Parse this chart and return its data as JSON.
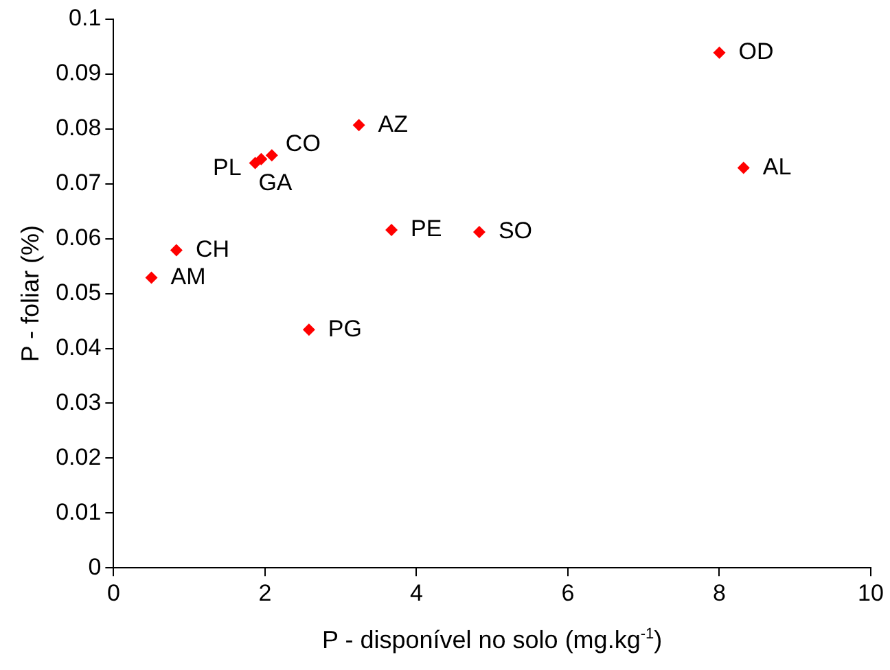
{
  "chart_data": {
    "type": "scatter",
    "xlabel": "P - disponível no solo (mg.kg$^{-1}$)",
    "ylabel": "P - foliar (%)",
    "x": [
      8.0,
      8.32,
      3.24,
      2.09,
      1.87,
      1.95,
      3.67,
      4.83,
      0.83,
      0.5,
      2.58
    ],
    "series": [
      {
        "color": "#ff0000",
        "values": [
          0.0939,
          0.0729,
          0.0807,
          0.0752,
          0.0738,
          0.0745,
          0.0616,
          0.0612,
          0.0579,
          0.0529,
          0.0434
        ]
      }
    ],
    "xlim": [
      0,
      10
    ],
    "xticks": [
      0,
      2,
      4,
      6,
      8,
      10
    ],
    "ylim": [
      0,
      0.1
    ],
    "yticks": [
      0,
      0.01,
      0.02,
      0.03,
      0.04,
      0.05,
      0.06,
      0.07,
      0.08,
      0.09,
      0.1
    ],
    "grid": false,
    "legend": false,
    "marker": "diamond",
    "annotations": [
      {
        "text": "OD",
        "x": 8.0,
        "y": 0.0939
      },
      {
        "text": "AL",
        "x": 8.32,
        "y": 0.0729
      },
      {
        "text": "AZ",
        "x": 3.24,
        "y": 0.0807
      },
      {
        "text": "CO",
        "x": 2.09,
        "y": 0.0752
      },
      {
        "text": "PL",
        "x": 1.87,
        "y": 0.0738
      },
      {
        "text": "GA",
        "x": 1.95,
        "y": 0.0745
      },
      {
        "text": "PE",
        "x": 3.67,
        "y": 0.0616
      },
      {
        "text": "SO",
        "x": 4.83,
        "y": 0.0612
      },
      {
        "text": "CH",
        "x": 0.83,
        "y": 0.0579
      },
      {
        "text": "AM",
        "x": 0.5,
        "y": 0.0529
      },
      {
        "text": "PG",
        "x": 2.58,
        "y": 0.0434
      }
    ]
  }
}
